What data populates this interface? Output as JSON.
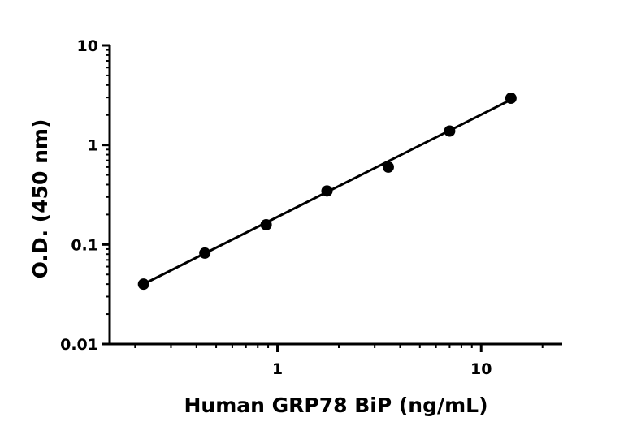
{
  "chart_data": {
    "type": "scatter",
    "title": "",
    "xlabel": "Human GRP78 BiP (ng/mL)",
    "ylabel": "O.D. (450 nm)",
    "x_scale": "log",
    "y_scale": "log",
    "xlim": [
      0.15,
      25
    ],
    "ylim": [
      0.01,
      10
    ],
    "x_tick_labels": [
      "1",
      "10"
    ],
    "y_tick_labels": [
      "0.01",
      "0.1",
      "1",
      "10"
    ],
    "grid": false,
    "legend": "none",
    "series": [
      {
        "x": [
          0.22,
          0.44,
          0.88,
          1.75,
          3.5,
          7,
          14
        ],
        "y": [
          0.04,
          0.082,
          0.158,
          0.345,
          0.6,
          1.38,
          2.95
        ]
      }
    ],
    "fit_line": {
      "x": [
        0.22,
        14
      ],
      "y": [
        0.04,
        2.85
      ]
    },
    "colors": {
      "marker": "#000000",
      "line": "#000000",
      "axis": "#000000"
    }
  }
}
